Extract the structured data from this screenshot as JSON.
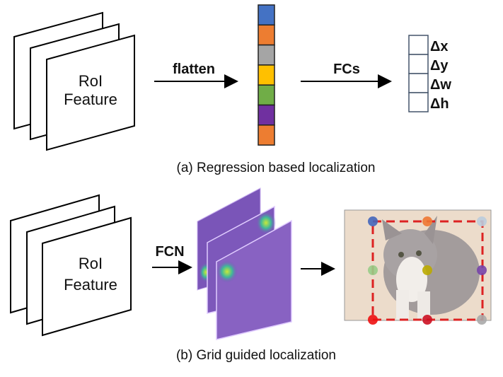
{
  "panel_a": {
    "feature_label_line1": "RoI",
    "feature_label_line2": "Feature",
    "flatten_label": "flatten",
    "fcs_label": "FCs",
    "vector_colors": [
      "#4472c4",
      "#ed7d31",
      "#a5a5a5",
      "#ffc000",
      "#70ad47",
      "#7030a0",
      "#ed7d31"
    ],
    "outputs": [
      "Δx",
      "Δy",
      "Δw",
      "Δh"
    ],
    "caption": "(a) Regression based localization"
  },
  "panel_b": {
    "feature_label_line1": "RoI",
    "feature_label_line2": "Feature",
    "fcn_label": "FCN",
    "grid_point_colors": [
      "#4466bb",
      "#ee7733",
      "#bbccdd",
      "#99cc88",
      "#bbaa00",
      "#7744aa",
      "#ee1111",
      "#cc1122",
      "#aaaaaa"
    ],
    "box_color": "#dd2222",
    "caption": "(b) Grid guided localization"
  }
}
